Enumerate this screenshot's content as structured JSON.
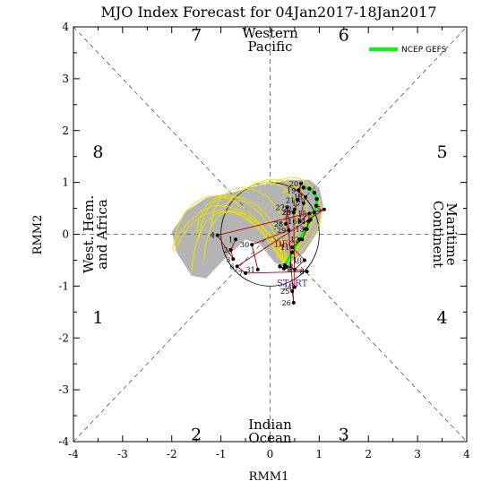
{
  "chart_data": {
    "type": "scatter",
    "title": "MJO Index Forecast for 04Jan2017-18Jan2017",
    "xlabel": "RMM1",
    "ylabel": "RMM2",
    "xlim": [
      -4,
      4
    ],
    "ylim": [
      -4,
      4
    ],
    "ticks": [
      "-4",
      "-3",
      "-2",
      "-1",
      "0",
      "1",
      "2",
      "3",
      "4"
    ],
    "phases": [
      {
        "label": "1",
        "x": -3.5,
        "y": -1.6
      },
      {
        "label": "2",
        "x": -1.5,
        "y": -3.85
      },
      {
        "label": "3",
        "x": 1.5,
        "y": -3.85
      },
      {
        "label": "4",
        "x": 3.5,
        "y": -1.6
      },
      {
        "label": "5",
        "x": 3.5,
        "y": 1.6
      },
      {
        "label": "6",
        "x": 1.5,
        "y": 3.85
      },
      {
        "label": "7",
        "x": -1.5,
        "y": 3.85
      },
      {
        "label": "8",
        "x": -3.5,
        "y": 1.6
      }
    ],
    "regions": [
      {
        "text": [
          "Western",
          "Pacific"
        ],
        "x": 0,
        "y": 3.75,
        "rotate": 0
      },
      {
        "text": [
          "Indian",
          "Ocean"
        ],
        "x": 0,
        "y": -3.8,
        "rotate": 0
      },
      {
        "text": [
          "West. Hem.",
          "and Africa"
        ],
        "x": -3.55,
        "y": 0,
        "rotate": -90
      },
      {
        "text": [
          "Maritime",
          "Continent"
        ],
        "x": 3.55,
        "y": 0,
        "rotate": 90
      }
    ],
    "legend": {
      "label": "NCEP GEFS",
      "color": "#00ff00",
      "position": "top-right"
    },
    "annotations": [
      {
        "text": "DEC",
        "x": 0.3,
        "y": -0.25,
        "color": "#aa0000"
      },
      {
        "text": "START",
        "x": 0.45,
        "y": -1.0,
        "color": "#551a8b"
      }
    ],
    "observed_dec": {
      "color": "#aa0000",
      "points": [
        {
          "label": "1",
          "x": -0.7,
          "y": -0.1
        },
        {
          "label": "2",
          "x": -0.8,
          "y": -0.3
        },
        {
          "label": "3",
          "x": -0.75,
          "y": -0.48
        },
        {
          "label": "4",
          "x": -1.07,
          "y": -0.02
        },
        {
          "label": "5",
          "x": 1.1,
          "y": 0.48
        },
        {
          "label": "6",
          "x": -0.67,
          "y": -0.62
        },
        {
          "label": "7",
          "x": -0.5,
          "y": -0.75
        },
        {
          "label": "8",
          "x": 0.75,
          "y": -0.72
        },
        {
          "label": "9",
          "x": 0.5,
          "y": -0.68
        },
        {
          "label": "10",
          "x": 0.7,
          "y": -0.5
        },
        {
          "label": "11",
          "x": 0.45,
          "y": -0.25
        },
        {
          "label": "12",
          "x": 0.65,
          "y": -0.1
        },
        {
          "label": "13",
          "x": 0.75,
          "y": 0.1
        },
        {
          "label": "14",
          "x": 0.78,
          "y": 0.25
        },
        {
          "label": "15",
          "x": 0.8,
          "y": 0.4
        },
        {
          "label": "16",
          "x": 0.6,
          "y": 0.25
        },
        {
          "label": "17",
          "x": 0.68,
          "y": 0.6
        },
        {
          "label": "18",
          "x": 0.72,
          "y": 0.72
        },
        {
          "label": "19",
          "x": 0.58,
          "y": 0.85
        },
        {
          "label": "20",
          "x": 0.63,
          "y": 0.98
        },
        {
          "label": "21",
          "x": 0.56,
          "y": 0.66
        },
        {
          "label": "22",
          "x": 0.5,
          "y": 0.48
        },
        {
          "label": "23",
          "x": 0.48,
          "y": 0.42
        },
        {
          "label": "24",
          "x": 0.5,
          "y": -1.02
        },
        {
          "label": "25",
          "x": 0.45,
          "y": -1.1
        },
        {
          "label": "26",
          "x": 0.48,
          "y": -1.32
        },
        {
          "label": "27",
          "x": 0.35,
          "y": 0.52
        },
        {
          "label": "28",
          "x": 0.32,
          "y": 0.2
        },
        {
          "label": "29",
          "x": 0.38,
          "y": 0.08
        },
        {
          "label": "30",
          "x": -0.37,
          "y": -0.2
        },
        {
          "label": "31",
          "x": -0.25,
          "y": -0.68
        }
      ]
    },
    "observed_jan": {
      "color": "#551a8b",
      "points": [
        {
          "label": "1",
          "x": 0.2,
          "y": -0.62
        },
        {
          "label": "2",
          "x": 0.28,
          "y": -0.66
        },
        {
          "label": "3",
          "x": 0.33,
          "y": -0.63
        },
        {
          "label": "4",
          "x": 0.3,
          "y": -0.6
        }
      ]
    },
    "forecast_ensemble_mean": {
      "name": "NCEP GEFS",
      "color": "#00ff00",
      "x": [
        0.3,
        0.45,
        0.6,
        0.72,
        0.82,
        0.9,
        0.94,
        0.95,
        0.9,
        0.8,
        0.68
      ],
      "y": [
        -0.6,
        -0.35,
        -0.1,
        0.1,
        0.28,
        0.42,
        0.55,
        0.68,
        0.8,
        0.88,
        0.9
      ]
    },
    "forecast_members": [
      {
        "x": [
          0.3,
          0.2,
          0.0,
          -0.3,
          -0.6,
          -0.9,
          -1.15,
          -1.4,
          -1.65,
          -1.85,
          -2.0
        ],
        "y": [
          -0.6,
          -0.3,
          0.0,
          0.25,
          0.45,
          0.55,
          0.55,
          0.45,
          0.25,
          0.0,
          -0.3
        ]
      },
      {
        "x": [
          0.3,
          0.15,
          -0.1,
          -0.35,
          -0.6,
          -0.85,
          -1.1,
          -1.3,
          -1.45,
          -1.55,
          -1.6
        ],
        "y": [
          -0.6,
          -0.35,
          -0.05,
          0.2,
          0.38,
          0.45,
          0.4,
          0.25,
          0.0,
          -0.35,
          -0.75
        ]
      },
      {
        "x": [
          0.3,
          0.2,
          0.05,
          -0.2,
          -0.45,
          -0.7,
          -0.95,
          -1.15,
          -1.3,
          -1.4,
          -1.45
        ],
        "y": [
          -0.6,
          -0.25,
          0.1,
          0.4,
          0.6,
          0.7,
          0.72,
          0.62,
          0.45,
          0.2,
          -0.1
        ]
      },
      {
        "x": [
          0.3,
          0.1,
          -0.15,
          -0.45,
          -0.75,
          -1.05,
          -1.3,
          -1.55,
          -1.75,
          -1.9,
          -1.95
        ],
        "y": [
          -0.6,
          -0.2,
          0.15,
          0.45,
          0.65,
          0.75,
          0.72,
          0.6,
          0.4,
          0.1,
          -0.2
        ]
      },
      {
        "x": [
          0.3,
          0.25,
          0.1,
          -0.1,
          -0.35,
          -0.6,
          -0.85,
          -1.05,
          -1.2,
          -1.3,
          -1.35
        ],
        "y": [
          -0.6,
          -0.4,
          -0.15,
          0.1,
          0.3,
          0.42,
          0.45,
          0.35,
          0.15,
          -0.15,
          -0.5
        ]
      },
      {
        "x": [
          0.3,
          0.35,
          0.3,
          0.15,
          -0.05,
          -0.3,
          -0.55,
          -0.8,
          -1.0,
          -1.15,
          -1.2
        ],
        "y": [
          -0.6,
          -0.2,
          0.2,
          0.5,
          0.72,
          0.85,
          0.9,
          0.85,
          0.7,
          0.45,
          0.15
        ]
      },
      {
        "x": [
          0.3,
          0.45,
          0.55,
          0.55,
          0.45,
          0.25,
          0.0,
          -0.25,
          -0.5,
          -0.75,
          -0.95
        ],
        "y": [
          -0.6,
          -0.3,
          0.05,
          0.4,
          0.7,
          0.92,
          1.0,
          0.98,
          0.88,
          0.72,
          0.5
        ]
      },
      {
        "x": [
          0.3,
          0.5,
          0.65,
          0.75,
          0.75,
          0.65,
          0.45,
          0.2,
          -0.05,
          -0.3,
          -0.55
        ],
        "y": [
          -0.6,
          -0.35,
          -0.05,
          0.25,
          0.55,
          0.8,
          0.98,
          1.05,
          1.05,
          0.98,
          0.85
        ]
      },
      {
        "x": [
          0.3,
          0.55,
          0.75,
          0.9,
          0.95,
          0.9,
          0.78,
          0.6,
          0.4,
          0.2,
          0.0
        ],
        "y": [
          -0.6,
          -0.3,
          0.0,
          0.3,
          0.55,
          0.8,
          0.98,
          1.08,
          1.1,
          1.05,
          0.95
        ]
      },
      {
        "x": [
          0.3,
          0.6,
          0.85,
          1.0,
          1.05,
          1.0,
          0.9,
          0.75,
          0.58,
          0.4,
          0.25
        ],
        "y": [
          -0.6,
          -0.35,
          -0.05,
          0.2,
          0.45,
          0.65,
          0.8,
          0.9,
          0.92,
          0.88,
          0.8
        ]
      },
      {
        "x": [
          0.3,
          0.15,
          0.0,
          -0.2,
          -0.45,
          -0.75,
          -1.05,
          -1.35,
          -1.6,
          -1.8,
          -1.95
        ],
        "y": [
          -0.6,
          -0.4,
          -0.15,
          0.1,
          0.3,
          0.42,
          0.45,
          0.38,
          0.2,
          -0.05,
          -0.35
        ]
      },
      {
        "x": [
          0.3,
          0.3,
          0.2,
          0.0,
          -0.25,
          -0.55,
          -0.85,
          -1.1,
          -1.3,
          -1.45,
          -1.5
        ],
        "y": [
          -0.6,
          -0.3,
          0.0,
          0.3,
          0.55,
          0.7,
          0.75,
          0.7,
          0.55,
          0.3,
          0.0
        ]
      }
    ],
    "ensemble_shading": {
      "color": "#b4b4b4",
      "x": [
        0.3,
        0.7,
        1.0,
        1.08,
        1.0,
        0.8,
        0.4,
        -0.2,
        -0.8,
        -1.3,
        -1.7,
        -2.0,
        -1.9,
        -1.6,
        -1.3,
        -0.9,
        -0.5,
        -0.2,
        0.1
      ],
      "y": [
        -0.62,
        -0.35,
        0.1,
        0.55,
        0.9,
        1.05,
        1.05,
        0.95,
        0.8,
        0.7,
        0.45,
        0.05,
        -0.35,
        -0.8,
        -0.85,
        -0.45,
        -0.1,
        -0.2,
        -0.55
      ]
    },
    "unit_circle_radius": 1,
    "grid": false
  }
}
